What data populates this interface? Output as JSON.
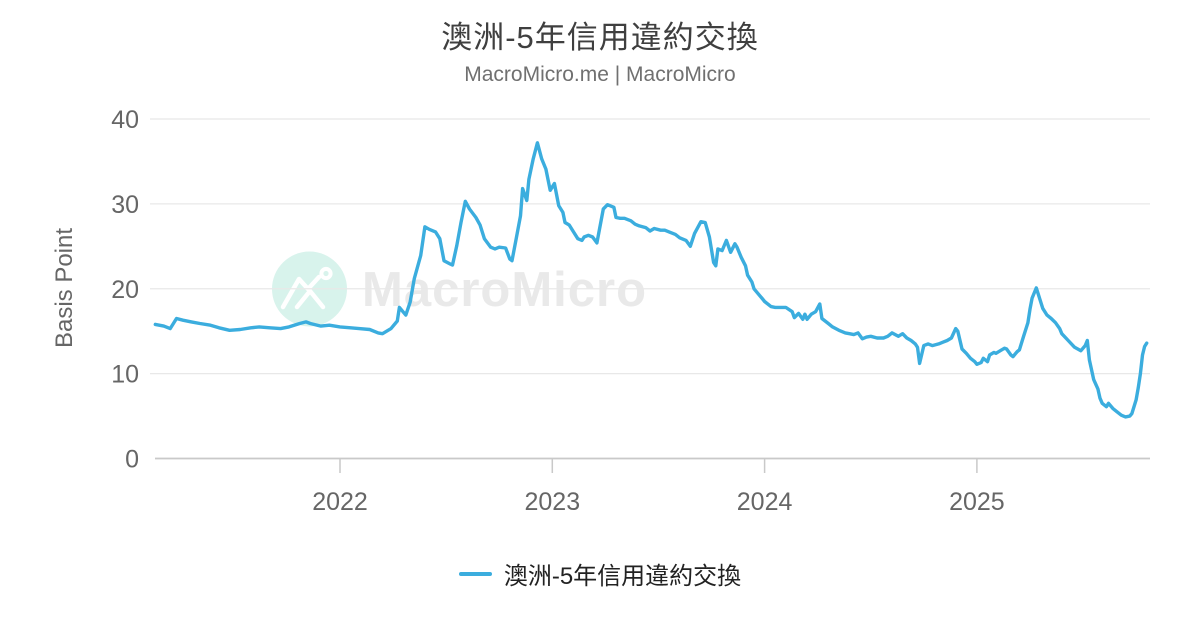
{
  "header": {
    "title": "澳洲-5年信用違約交換",
    "subtitle": "MacroMicro.me | MacroMicro"
  },
  "watermark": {
    "brand": "MacroMicro",
    "icon": "macromicro-mountain-logo-icon",
    "circle_color": "#d8f3ec",
    "text_color": "#e9e9e9"
  },
  "legend": {
    "label": "澳洲-5年信用違約交換",
    "swatch_color": "#3badde"
  },
  "colors": {
    "background": "#ffffff",
    "grid": "#e8e8e8",
    "axis": "#c9c9c9",
    "tick_label": "#666666",
    "title": "#3f3f3f",
    "subtitle": "#707070",
    "legend_text": "#222222",
    "line": "#3badde"
  },
  "chart_data": {
    "type": "line",
    "title": "澳洲-5年信用違約交換",
    "subtitle": "MacroMicro.me | MacroMicro",
    "ylabel": "Basis Point",
    "xlabel": "",
    "unit": "basis points",
    "ylim": [
      0,
      40
    ],
    "yticks": [
      0,
      10,
      20,
      30,
      40
    ],
    "xticks": [
      2022,
      2023,
      2024,
      2025
    ],
    "xlim": [
      2021.13,
      2025.82
    ],
    "grid": true,
    "legend_position": "bottom",
    "series": [
      {
        "name": "澳洲-5年信用違約交換",
        "color": "#3badde",
        "x_unit": "decimal_year",
        "points": [
          [
            2021.13,
            15.8
          ],
          [
            2021.17,
            15.6
          ],
          [
            2021.2,
            15.3
          ],
          [
            2021.23,
            16.5
          ],
          [
            2021.26,
            16.3
          ],
          [
            2021.3,
            16.1
          ],
          [
            2021.34,
            15.9
          ],
          [
            2021.39,
            15.7
          ],
          [
            2021.43,
            15.4
          ],
          [
            2021.48,
            15.1
          ],
          [
            2021.53,
            15.2
          ],
          [
            2021.58,
            15.4
          ],
          [
            2021.62,
            15.5
          ],
          [
            2021.67,
            15.4
          ],
          [
            2021.72,
            15.3
          ],
          [
            2021.76,
            15.5
          ],
          [
            2021.81,
            15.9
          ],
          [
            2021.84,
            16.1
          ],
          [
            2021.86,
            15.9
          ],
          [
            2021.91,
            15.6
          ],
          [
            2021.95,
            15.7
          ],
          [
            2022.0,
            15.5
          ],
          [
            2022.05,
            15.4
          ],
          [
            2022.09,
            15.3
          ],
          [
            2022.14,
            15.2
          ],
          [
            2022.18,
            14.8
          ],
          [
            2022.2,
            14.7
          ],
          [
            2022.24,
            15.3
          ],
          [
            2022.27,
            16.2
          ],
          [
            2022.28,
            17.8
          ],
          [
            2022.31,
            16.9
          ],
          [
            2022.33,
            18.4
          ],
          [
            2022.35,
            21.2
          ],
          [
            2022.38,
            23.9
          ],
          [
            2022.4,
            27.3
          ],
          [
            2022.42,
            27.0
          ],
          [
            2022.45,
            26.7
          ],
          [
            2022.47,
            25.9
          ],
          [
            2022.49,
            23.3
          ],
          [
            2022.52,
            22.9
          ],
          [
            2022.53,
            22.8
          ],
          [
            2022.55,
            25.1
          ],
          [
            2022.57,
            27.8
          ],
          [
            2022.59,
            30.3
          ],
          [
            2022.61,
            29.4
          ],
          [
            2022.64,
            28.4
          ],
          [
            2022.66,
            27.5
          ],
          [
            2022.68,
            25.9
          ],
          [
            2022.71,
            24.9
          ],
          [
            2022.73,
            24.7
          ],
          [
            2022.75,
            24.9
          ],
          [
            2022.78,
            24.8
          ],
          [
            2022.8,
            23.5
          ],
          [
            2022.81,
            23.3
          ],
          [
            2022.83,
            25.9
          ],
          [
            2022.85,
            28.6
          ],
          [
            2022.86,
            31.8
          ],
          [
            2022.88,
            30.4
          ],
          [
            2022.89,
            32.9
          ],
          [
            2022.91,
            35.3
          ],
          [
            2022.93,
            37.2
          ],
          [
            2022.95,
            35.3
          ],
          [
            2022.97,
            34.1
          ],
          [
            2022.99,
            31.6
          ],
          [
            2023.01,
            32.4
          ],
          [
            2023.03,
            29.8
          ],
          [
            2023.05,
            29.0
          ],
          [
            2023.06,
            27.8
          ],
          [
            2023.08,
            27.5
          ],
          [
            2023.1,
            26.7
          ],
          [
            2023.12,
            25.9
          ],
          [
            2023.14,
            25.7
          ],
          [
            2023.15,
            26.1
          ],
          [
            2023.17,
            26.3
          ],
          [
            2023.19,
            26.1
          ],
          [
            2023.21,
            25.4
          ],
          [
            2023.24,
            29.4
          ],
          [
            2023.26,
            29.9
          ],
          [
            2023.29,
            29.6
          ],
          [
            2023.3,
            28.4
          ],
          [
            2023.32,
            28.3
          ],
          [
            2023.34,
            28.3
          ],
          [
            2023.37,
            28.0
          ],
          [
            2023.39,
            27.6
          ],
          [
            2023.41,
            27.4
          ],
          [
            2023.44,
            27.2
          ],
          [
            2023.46,
            26.8
          ],
          [
            2023.48,
            27.1
          ],
          [
            2023.51,
            26.9
          ],
          [
            2023.53,
            26.9
          ],
          [
            2023.55,
            26.7
          ],
          [
            2023.58,
            26.4
          ],
          [
            2023.6,
            26.0
          ],
          [
            2023.63,
            25.7
          ],
          [
            2023.65,
            25.0
          ],
          [
            2023.67,
            26.5
          ],
          [
            2023.7,
            27.9
          ],
          [
            2023.72,
            27.8
          ],
          [
            2023.74,
            26.1
          ],
          [
            2023.76,
            23.1
          ],
          [
            2023.77,
            22.7
          ],
          [
            2023.78,
            24.7
          ],
          [
            2023.8,
            24.5
          ],
          [
            2023.82,
            25.7
          ],
          [
            2023.84,
            24.3
          ],
          [
            2023.86,
            25.3
          ],
          [
            2023.87,
            24.9
          ],
          [
            2023.89,
            23.7
          ],
          [
            2023.91,
            22.7
          ],
          [
            2023.92,
            21.6
          ],
          [
            2023.94,
            20.8
          ],
          [
            2023.95,
            20.0
          ],
          [
            2023.97,
            19.4
          ],
          [
            2023.99,
            18.8
          ],
          [
            2024.0,
            18.5
          ],
          [
            2024.03,
            17.9
          ],
          [
            2024.05,
            17.8
          ],
          [
            2024.08,
            17.8
          ],
          [
            2024.1,
            17.8
          ],
          [
            2024.13,
            17.3
          ],
          [
            2024.14,
            16.6
          ],
          [
            2024.16,
            17.1
          ],
          [
            2024.18,
            16.4
          ],
          [
            2024.19,
            17.0
          ],
          [
            2024.2,
            16.4
          ],
          [
            2024.22,
            17.0
          ],
          [
            2024.24,
            17.3
          ],
          [
            2024.26,
            18.2
          ],
          [
            2024.27,
            16.5
          ],
          [
            2024.3,
            15.9
          ],
          [
            2024.32,
            15.5
          ],
          [
            2024.35,
            15.1
          ],
          [
            2024.38,
            14.8
          ],
          [
            2024.4,
            14.7
          ],
          [
            2024.42,
            14.6
          ],
          [
            2024.44,
            14.8
          ],
          [
            2024.46,
            14.1
          ],
          [
            2024.48,
            14.3
          ],
          [
            2024.5,
            14.4
          ],
          [
            2024.53,
            14.2
          ],
          [
            2024.56,
            14.2
          ],
          [
            2024.58,
            14.4
          ],
          [
            2024.6,
            14.8
          ],
          [
            2024.63,
            14.4
          ],
          [
            2024.65,
            14.7
          ],
          [
            2024.67,
            14.2
          ],
          [
            2024.69,
            13.9
          ],
          [
            2024.71,
            13.5
          ],
          [
            2024.72,
            13.1
          ],
          [
            2024.73,
            11.2
          ],
          [
            2024.75,
            13.3
          ],
          [
            2024.77,
            13.5
          ],
          [
            2024.79,
            13.3
          ],
          [
            2024.82,
            13.5
          ],
          [
            2024.84,
            13.7
          ],
          [
            2024.86,
            13.9
          ],
          [
            2024.88,
            14.2
          ],
          [
            2024.9,
            15.3
          ],
          [
            2024.91,
            15.0
          ],
          [
            2024.93,
            12.9
          ],
          [
            2024.95,
            12.4
          ],
          [
            2024.97,
            11.8
          ],
          [
            2024.99,
            11.4
          ],
          [
            2025.0,
            11.1
          ],
          [
            2025.02,
            11.3
          ],
          [
            2025.03,
            11.8
          ],
          [
            2025.05,
            11.4
          ],
          [
            2025.06,
            12.2
          ],
          [
            2025.08,
            12.5
          ],
          [
            2025.09,
            12.4
          ],
          [
            2025.11,
            12.7
          ],
          [
            2025.13,
            13.0
          ],
          [
            2025.14,
            12.9
          ],
          [
            2025.16,
            12.2
          ],
          [
            2025.17,
            12.0
          ],
          [
            2025.19,
            12.6
          ],
          [
            2025.2,
            12.8
          ],
          [
            2025.22,
            14.4
          ],
          [
            2025.24,
            16.0
          ],
          [
            2025.25,
            17.6
          ],
          [
            2025.26,
            18.9
          ],
          [
            2025.28,
            20.1
          ],
          [
            2025.31,
            17.7
          ],
          [
            2025.33,
            16.9
          ],
          [
            2025.35,
            16.5
          ],
          [
            2025.37,
            16.0
          ],
          [
            2025.39,
            15.3
          ],
          [
            2025.4,
            14.7
          ],
          [
            2025.43,
            13.9
          ],
          [
            2025.46,
            13.1
          ],
          [
            2025.49,
            12.7
          ],
          [
            2025.51,
            13.3
          ],
          [
            2025.52,
            13.9
          ],
          [
            2025.53,
            11.6
          ],
          [
            2025.55,
            9.3
          ],
          [
            2025.57,
            8.2
          ],
          [
            2025.58,
            7.1
          ],
          [
            2025.59,
            6.5
          ],
          [
            2025.61,
            6.1
          ],
          [
            2025.62,
            6.5
          ],
          [
            2025.64,
            5.9
          ],
          [
            2025.66,
            5.5
          ],
          [
            2025.68,
            5.1
          ],
          [
            2025.7,
            4.9
          ],
          [
            2025.72,
            5.0
          ],
          [
            2025.73,
            5.3
          ],
          [
            2025.75,
            6.9
          ],
          [
            2025.76,
            8.3
          ],
          [
            2025.77,
            10.0
          ],
          [
            2025.78,
            12.2
          ],
          [
            2025.79,
            13.2
          ],
          [
            2025.8,
            13.6
          ]
        ]
      }
    ]
  }
}
